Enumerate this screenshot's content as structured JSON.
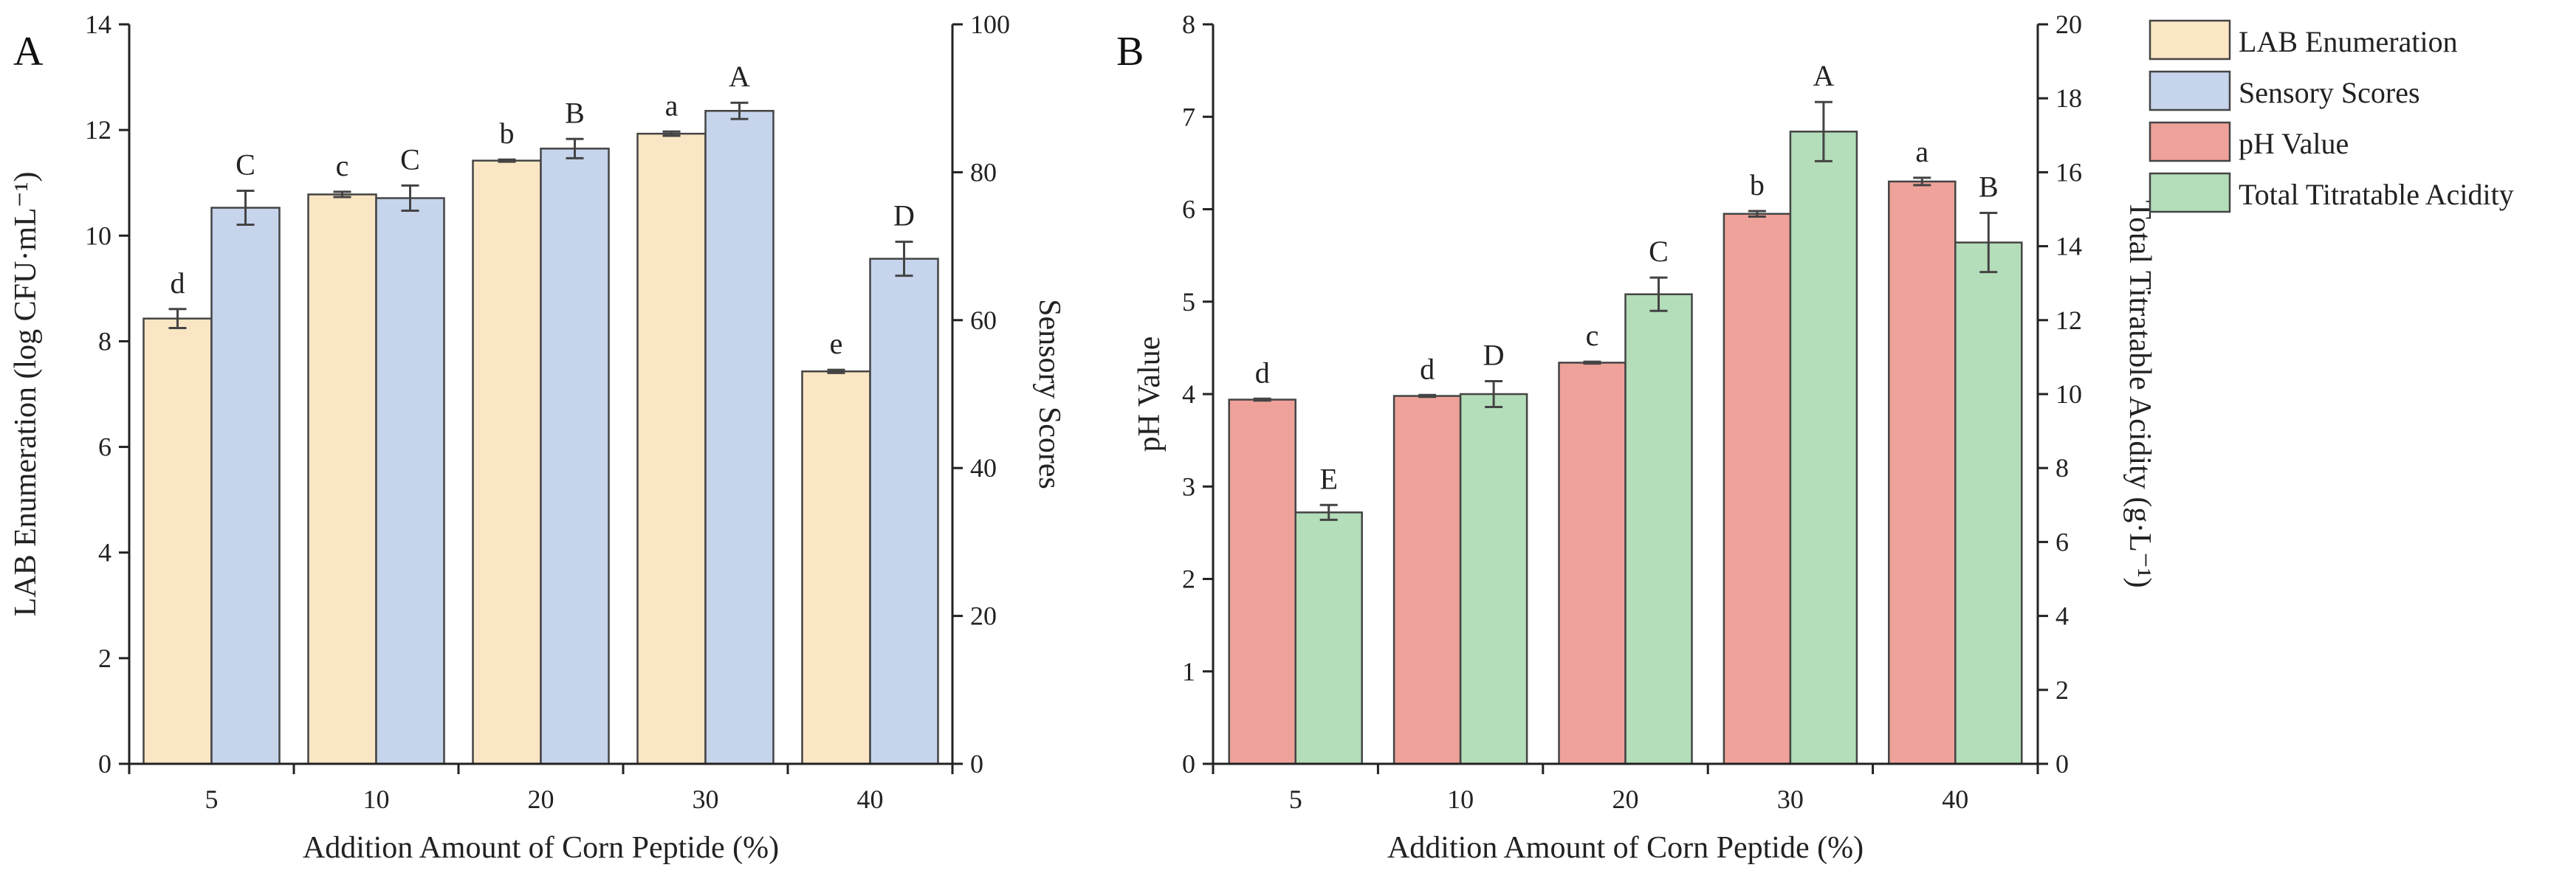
{
  "chart_data": [
    {
      "type": "bar",
      "panel_label": "A",
      "categories": [
        "5",
        "10",
        "20",
        "30",
        "40"
      ],
      "xlabel": "Addition Amount of Corn Peptide (%)",
      "ylabel": "LAB Enumeration (log CFU·mL⁻¹)",
      "ylabel_right": "Sensory Scores",
      "ylim": [
        0,
        14
      ],
      "yticks": [
        0,
        2,
        4,
        6,
        8,
        10,
        12,
        14
      ],
      "ylim_right": [
        0,
        100
      ],
      "yticks_right": [
        0,
        20,
        40,
        60,
        80,
        100
      ],
      "series": [
        {
          "name": "LAB Enumeration",
          "axis": "left",
          "color": "#FAE6C4",
          "values": [
            8.43,
            10.78,
            11.42,
            11.93,
            7.43
          ],
          "errors": [
            0.18,
            0.05,
            0.02,
            0.04,
            0.03
          ],
          "letters": [
            "d",
            "c",
            "b",
            "a",
            "e"
          ]
        },
        {
          "name": "Sensory Scores",
          "axis": "right",
          "color": "#C6D4EC",
          "values": [
            75.2,
            76.5,
            83.2,
            88.3,
            68.3
          ],
          "errors": [
            2.3,
            1.7,
            1.3,
            1.1,
            2.3
          ],
          "letters": [
            "C",
            "C",
            "B",
            "A",
            "D"
          ]
        }
      ]
    },
    {
      "type": "bar",
      "panel_label": "B",
      "categories": [
        "5",
        "10",
        "20",
        "30",
        "40"
      ],
      "xlabel": "Addition Amount of Corn Peptide (%)",
      "ylabel": "pH Value",
      "ylabel_right": "Total Titratable Acidity (g·L⁻¹)",
      "ylim": [
        0,
        8
      ],
      "yticks": [
        0,
        1,
        2,
        3,
        4,
        5,
        6,
        7,
        8
      ],
      "ylim_right": [
        0,
        20
      ],
      "yticks_right": [
        0,
        2,
        4,
        6,
        8,
        10,
        12,
        14,
        16,
        18,
        20
      ],
      "series": [
        {
          "name": "pH Value",
          "axis": "left",
          "color": "#EFA29A",
          "values": [
            3.94,
            3.98,
            4.34,
            5.95,
            6.3
          ],
          "errors": [
            0.01,
            0.01,
            0.01,
            0.03,
            0.04
          ],
          "letters": [
            "d",
            "d",
            "c",
            "b",
            "a"
          ]
        },
        {
          "name": "Total Titratable Acidity",
          "axis": "right",
          "color": "#B4DDB9",
          "values": [
            6.8,
            10.0,
            12.7,
            17.1,
            14.1
          ],
          "errors": [
            0.2,
            0.35,
            0.45,
            0.8,
            0.8
          ],
          "letters": [
            "E",
            "D",
            "C",
            "A",
            "B"
          ]
        }
      ]
    }
  ],
  "legend": {
    "placement": "top-right",
    "items": [
      {
        "label": "LAB Enumeration",
        "color": "#FAE6C4"
      },
      {
        "label": "Sensory Scores",
        "color": "#C6D4EC"
      },
      {
        "label": "pH Value",
        "color": "#EFA29A"
      },
      {
        "label": "Total Titratable Acidity",
        "color": "#B4DDB9"
      }
    ]
  }
}
